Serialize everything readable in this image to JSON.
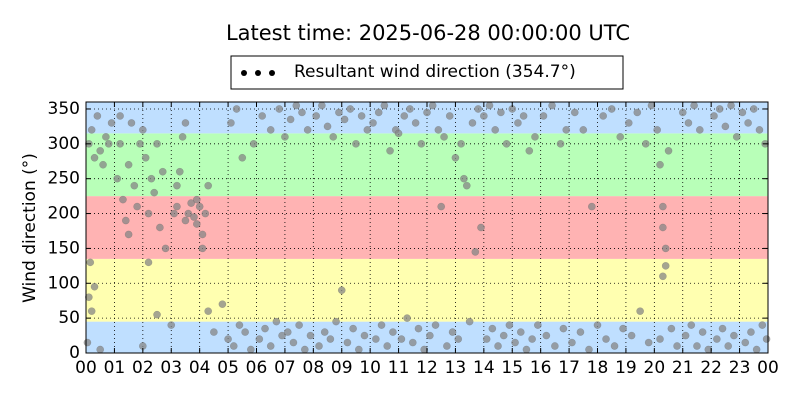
{
  "chart_data": {
    "type": "scatter",
    "title": "Latest time: 2025-06-28 00:00:00 UTC",
    "y_label": "Wind direction (°)",
    "legend_position": "top-center",
    "grid": true,
    "xlim": [
      0,
      24
    ],
    "ylim": [
      0,
      360
    ],
    "xticks": [
      {
        "value": 0,
        "label": "00"
      },
      {
        "value": 1,
        "label": "01"
      },
      {
        "value": 2,
        "label": "02"
      },
      {
        "value": 3,
        "label": "03"
      },
      {
        "value": 4,
        "label": "04"
      },
      {
        "value": 5,
        "label": "05"
      },
      {
        "value": 6,
        "label": "06"
      },
      {
        "value": 7,
        "label": "07"
      },
      {
        "value": 8,
        "label": "08"
      },
      {
        "value": 9,
        "label": "09"
      },
      {
        "value": 10,
        "label": "10"
      },
      {
        "value": 11,
        "label": "11"
      },
      {
        "value": 12,
        "label": "12"
      },
      {
        "value": 13,
        "label": "13"
      },
      {
        "value": 14,
        "label": "14"
      },
      {
        "value": 15,
        "label": "15"
      },
      {
        "value": 16,
        "label": "16"
      },
      {
        "value": 17,
        "label": "17"
      },
      {
        "value": 18,
        "label": "18"
      },
      {
        "value": 19,
        "label": "19"
      },
      {
        "value": 20,
        "label": "20"
      },
      {
        "value": 21,
        "label": "21"
      },
      {
        "value": 22,
        "label": "22"
      },
      {
        "value": 23,
        "label": "23"
      },
      {
        "value": 24,
        "label": "00"
      }
    ],
    "yticks": [
      0,
      50,
      100,
      150,
      200,
      250,
      300,
      350
    ],
    "bands": [
      {
        "from": 0,
        "to": 45,
        "color": "#bfdfff"
      },
      {
        "from": 45,
        "to": 135,
        "color": "#ffffb0"
      },
      {
        "from": 135,
        "to": 225,
        "color": "#ffb3b3"
      },
      {
        "from": 225,
        "to": 315,
        "color": "#b8ffb8"
      },
      {
        "from": 315,
        "to": 360,
        "color": "#bfdfff"
      }
    ],
    "series": [
      {
        "name": "Resultant wind direction (354.7°)",
        "color": "#858585",
        "x": [
          0.1,
          0.2,
          0.3,
          0.4,
          0.5,
          0.7,
          0.9,
          0.1,
          0.2,
          0.15,
          0.3,
          0.05,
          0.6,
          0.8,
          1.1,
          1.2,
          1.3,
          1.4,
          1.5,
          1.6,
          1.7,
          1.8,
          1.9,
          1.2,
          1.5,
          2.1,
          2.2,
          2.3,
          2.4,
          2.5,
          2.6,
          2.7,
          2.8,
          2.2,
          2.0,
          3.1,
          3.2,
          3.3,
          3.4,
          3.5,
          3.6,
          3.7,
          3.8,
          3.9,
          4.0,
          4.1,
          4.2,
          4.3,
          3.9,
          4.1,
          3.5,
          3.2,
          4.3,
          4.5,
          4.8,
          5.0,
          5.2,
          5.4,
          5.6,
          5.8,
          5.1,
          5.3,
          5.5,
          5.9,
          6.1,
          6.3,
          6.5,
          6.7,
          6.9,
          6.2,
          6.5,
          6.8,
          7.0,
          7.2,
          7.4,
          7.6,
          7.8,
          7.1,
          7.3,
          7.5,
          7.7,
          7.9,
          8.1,
          8.3,
          8.5,
          8.7,
          8.9,
          8.2,
          8.4,
          8.6,
          8.8,
          9.0,
          9.1,
          9.3,
          9.5,
          9.7,
          9.9,
          9.2,
          9.4,
          9.6,
          9.8,
          10.1,
          10.3,
          10.5,
          10.7,
          10.9,
          10.2,
          10.4,
          10.6,
          10.8,
          11.0,
          11.2,
          11.4,
          11.6,
          11.8,
          11.1,
          11.3,
          11.5,
          11.7,
          11.9,
          12.0,
          12.2,
          12.4,
          12.6,
          12.8,
          12.5,
          12.1,
          12.3,
          12.7,
          12.9,
          13.0,
          13.2,
          13.3,
          13.4,
          13.6,
          13.8,
          13.9,
          13.7,
          13.1,
          13.5,
          14.0,
          14.2,
          14.4,
          14.6,
          14.8,
          14.1,
          14.3,
          14.5,
          14.7,
          14.9,
          15.0,
          15.2,
          15.4,
          15.6,
          15.8,
          15.1,
          15.3,
          15.5,
          15.7,
          15.9,
          16.1,
          16.4,
          16.7,
          16.9,
          16.2,
          16.5,
          16.8,
          17.2,
          17.5,
          17.8,
          17.1,
          17.4,
          17.7,
          18.0,
          18.2,
          18.5,
          18.8,
          18.3,
          18.6,
          18.9,
          19.1,
          19.4,
          19.7,
          19.9,
          19.2,
          19.5,
          19.8,
          20.1,
          20.2,
          20.3,
          20.3,
          20.4,
          20.3,
          20.4,
          20.5,
          20.2,
          20.6,
          20.8,
          21.0,
          21.2,
          21.4,
          21.6,
          21.1,
          21.3,
          21.5,
          21.7,
          21.9,
          22.1,
          22.3,
          22.5,
          22.7,
          22.9,
          22.2,
          22.4,
          22.6,
          22.8,
          23.1,
          23.3,
          23.5,
          23.7,
          23.9,
          23.2,
          23.4,
          23.6,
          23.8,
          23.95,
          0.5,
          2.0,
          2.5,
          3.0
        ],
        "values": [
          300,
          320,
          280,
          340,
          290,
          310,
          330,
          80,
          60,
          130,
          95,
          15,
          270,
          300,
          250,
          300,
          220,
          190,
          270,
          330,
          240,
          210,
          300,
          340,
          170,
          280,
          200,
          250,
          230,
          300,
          180,
          260,
          150,
          130,
          320,
          200,
          210,
          260,
          310,
          190,
          200,
          215,
          195,
          185,
          210,
          170,
          200,
          240,
          220,
          150,
          330,
          240,
          60,
          30,
          70,
          20,
          10,
          40,
          30,
          5,
          330,
          350,
          280,
          300,
          20,
          35,
          10,
          45,
          25,
          340,
          320,
          350,
          310,
          335,
          355,
          345,
          320,
          30,
          15,
          40,
          5,
          25,
          340,
          355,
          325,
          310,
          345,
          10,
          30,
          20,
          45,
          90,
          335,
          350,
          300,
          340,
          320,
          15,
          35,
          5,
          25,
          330,
          345,
          355,
          290,
          320,
          20,
          40,
          10,
          30,
          315,
          340,
          350,
          330,
          300,
          20,
          50,
          15,
          35,
          5,
          345,
          355,
          320,
          310,
          340,
          210,
          25,
          40,
          10,
          30,
          280,
          300,
          250,
          240,
          330,
          350,
          180,
          145,
          20,
          45,
          340,
          355,
          320,
          345,
          300,
          20,
          35,
          10,
          25,
          40,
          350,
          330,
          340,
          290,
          310,
          15,
          30,
          5,
          20,
          40,
          340,
          355,
          300,
          320,
          25,
          10,
          35,
          345,
          320,
          210,
          15,
          30,
          5,
          40,
          340,
          350,
          310,
          20,
          10,
          35,
          330,
          345,
          300,
          355,
          25,
          60,
          15,
          320,
          270,
          210,
          180,
          150,
          110,
          125,
          290,
          20,
          35,
          10,
          345,
          330,
          355,
          320,
          25,
          40,
          10,
          30,
          5,
          340,
          350,
          325,
          355,
          310,
          20,
          35,
          10,
          25,
          345,
          330,
          350,
          320,
          300,
          15,
          30,
          5,
          40,
          20,
          5,
          10,
          55,
          40
        ]
      }
    ]
  }
}
